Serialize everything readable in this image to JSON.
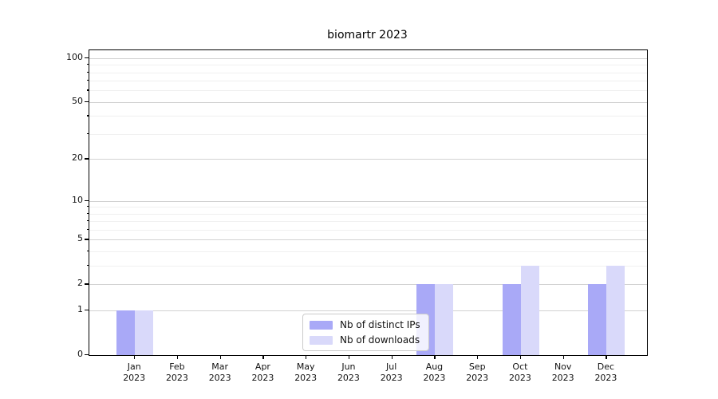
{
  "title": "biomartr 2023",
  "chart_data": {
    "type": "bar",
    "title": "biomartr 2023",
    "categories": [
      "Jan 2023",
      "Feb 2023",
      "Mar 2023",
      "Apr 2023",
      "May 2023",
      "Jun 2023",
      "Jul 2023",
      "Aug 2023",
      "Sep 2023",
      "Oct 2023",
      "Nov 2023",
      "Dec 2023"
    ],
    "months": [
      "Jan",
      "Feb",
      "Mar",
      "Apr",
      "May",
      "Jun",
      "Jul",
      "Aug",
      "Sep",
      "Oct",
      "Nov",
      "Dec"
    ],
    "year": "2023",
    "series": [
      {
        "name": "Nb of distinct IPs",
        "color": "#a9a9f7",
        "values": [
          1,
          0,
          0,
          0,
          0,
          0,
          0,
          2,
          0,
          2,
          0,
          2
        ]
      },
      {
        "name": "Nb of downloads",
        "color": "#d9d9fa",
        "values": [
          1,
          0,
          0,
          0,
          0,
          0,
          0,
          2,
          0,
          3,
          0,
          3
        ]
      }
    ],
    "yaxis": {
      "scale": "log1p",
      "ticks": [
        0,
        1,
        2,
        5,
        10,
        20,
        50,
        100
      ],
      "minor_ticks": [
        3,
        4,
        6,
        7,
        8,
        9,
        30,
        40,
        60,
        70,
        80,
        90
      ],
      "max": 113
    },
    "legend_position": "inside-bottom-center",
    "grid": true
  }
}
